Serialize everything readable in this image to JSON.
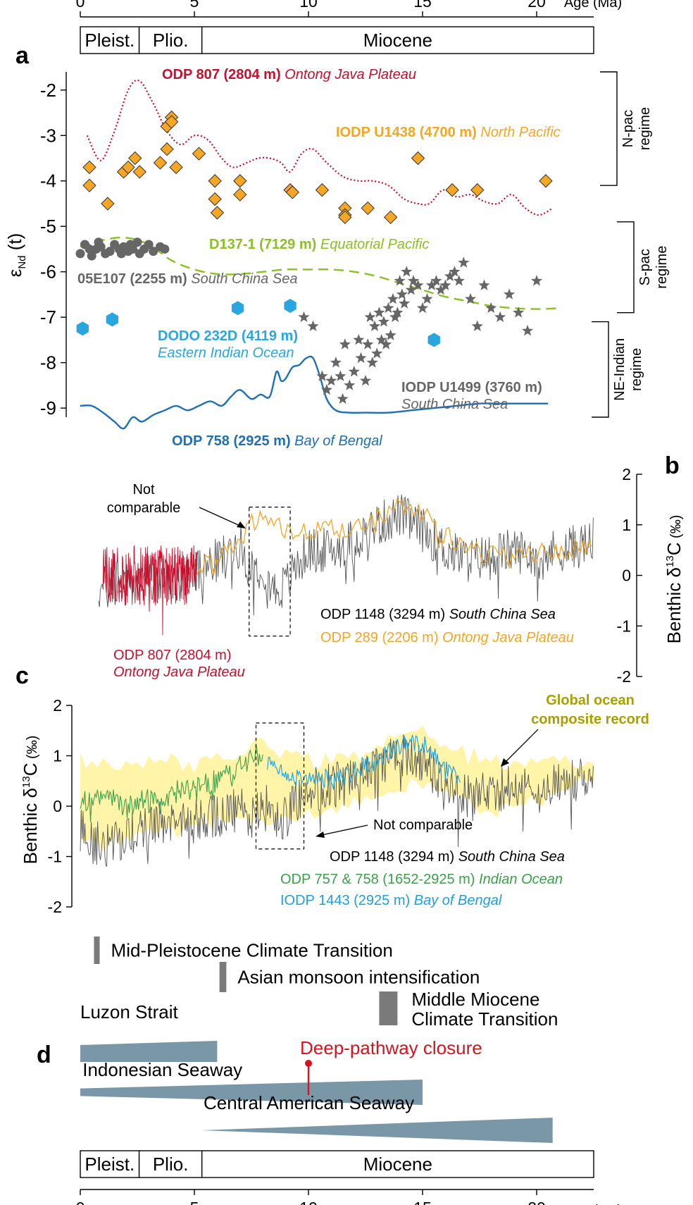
{
  "chart_data": [
    {
      "id": "timescale",
      "type": "table",
      "x_axis_label": "Age (Ma)",
      "ticks": [
        0,
        5,
        10,
        15,
        20
      ],
      "xlim": [
        0,
        22.5
      ],
      "epochs": [
        {
          "name": "Pleist.",
          "start": 0,
          "end": 2.58
        },
        {
          "name": "Plio.",
          "start": 2.58,
          "end": 5.33
        },
        {
          "name": "Miocene",
          "start": 5.33,
          "end": 22.5
        }
      ]
    },
    {
      "id": "panel_a",
      "panel_label": "a",
      "type": "scatter",
      "ylabel_main": "ε",
      "ylabel_sub": "Nd",
      "ylabel_tail": " (t)",
      "ylim": [
        -9.2,
        -1.6
      ],
      "yticks": [
        -9,
        -8,
        -7,
        -6,
        -5,
        -4,
        -3,
        -2
      ],
      "regimes": [
        {
          "line1": "N-pac",
          "line2": "regime",
          "from": -1.6,
          "to": -4.1
        },
        {
          "line1": "S-pac",
          "line2": "regime",
          "from": -4.9,
          "to": -6.9
        },
        {
          "line1": "NE-Indian",
          "line2": "regime",
          "from": -7.1,
          "to": -9.2
        }
      ],
      "series": [
        {
          "key": "odp807",
          "site": "ODP 807 (2804 m)",
          "region": "Ontong Java Plateau",
          "color": "#c8102e",
          "style": "dotted",
          "x": [
            0.3,
            0.9,
            1.5,
            2.1,
            2.6,
            3.2,
            3.8,
            4.4,
            5.0,
            5.6,
            6.2,
            6.7,
            7.3,
            7.8,
            8.3,
            8.8,
            9.2,
            9.7,
            10.2,
            10.8,
            11.5,
            12.2,
            12.8,
            13.5,
            14.2,
            14.8,
            15.3,
            15.9,
            16.5,
            17.1,
            17.7,
            18.3,
            18.9,
            19.5,
            20.1,
            20.7
          ],
          "y": [
            -3.0,
            -3.55,
            -2.9,
            -2.0,
            -1.8,
            -2.3,
            -2.9,
            -3.2,
            -3.0,
            -3.1,
            -3.5,
            -3.7,
            -3.6,
            -3.5,
            -3.5,
            -3.6,
            -3.8,
            -3.4,
            -3.3,
            -3.6,
            -3.9,
            -4.0,
            -4.0,
            -4.1,
            -4.4,
            -4.5,
            -4.5,
            -4.2,
            -4.35,
            -4.3,
            -4.45,
            -4.5,
            -4.3,
            -4.6,
            -4.75,
            -4.6
          ]
        },
        {
          "key": "u1438",
          "site": "IODP U1438 (4700 m)",
          "region": "North Pacific",
          "color": "#f5a623",
          "style": "diamond",
          "x": [
            0.4,
            0.4,
            1.2,
            1.9,
            2.1,
            2.4,
            2.6,
            3.5,
            3.8,
            3.8,
            4.0,
            4.0,
            4.2,
            5.2,
            5.9,
            5.9,
            6.0,
            7.0,
            7.0,
            9.2,
            9.3,
            10.6,
            11.6,
            11.6,
            11.6,
            12.6,
            13.6,
            14.8,
            16.3,
            17.4,
            20.4
          ],
          "y": [
            -3.7,
            -4.1,
            -4.5,
            -3.8,
            -3.7,
            -3.5,
            -3.8,
            -3.6,
            -3.3,
            -2.8,
            -2.6,
            -2.7,
            -3.7,
            -3.4,
            -4.0,
            -4.4,
            -4.7,
            -4.0,
            -4.3,
            -4.2,
            -4.25,
            -4.2,
            -4.6,
            -4.75,
            -4.8,
            -4.6,
            -4.8,
            -3.5,
            -4.2,
            -4.2,
            -4.0
          ]
        },
        {
          "key": "d137",
          "site": "D137-1 (7129 m)",
          "region": "Equatorial Pacific",
          "color": "#8cbf26",
          "style": "dashed",
          "x": [
            0.0,
            1.0,
            2.0,
            3.0,
            4.0,
            5.0,
            6.0,
            7.0,
            8.0,
            9.0,
            10.0,
            11.0,
            12.0,
            13.0,
            14.0,
            15.0,
            16.0,
            17.0,
            18.0,
            19.0,
            20.0,
            21.0
          ],
          "y": [
            -5.45,
            -5.3,
            -5.25,
            -5.4,
            -5.75,
            -5.95,
            -6.05,
            -6.05,
            -6.0,
            -5.95,
            -5.95,
            -5.95,
            -6.0,
            -6.1,
            -6.25,
            -6.4,
            -6.55,
            -6.65,
            -6.75,
            -6.8,
            -6.82,
            -6.8
          ]
        },
        {
          "key": "05e107",
          "site": "05E107 (2255 m)",
          "region": "South China Sea",
          "color": "#666666",
          "style": "circle",
          "x": [
            0.0,
            0.2,
            0.4,
            0.5,
            0.7,
            0.8,
            0.9,
            1.1,
            1.3,
            1.5,
            1.7,
            1.8,
            1.9,
            2.1,
            2.2,
            2.3,
            2.5,
            2.6,
            2.8,
            3.0,
            3.2,
            3.5,
            3.7
          ],
          "y": [
            -5.6,
            -5.4,
            -5.5,
            -5.65,
            -5.5,
            -5.35,
            -5.45,
            -5.6,
            -5.55,
            -5.4,
            -5.5,
            -5.6,
            -5.45,
            -5.55,
            -5.4,
            -5.5,
            -5.35,
            -5.6,
            -5.5,
            -5.4,
            -5.55,
            -5.45,
            -5.5
          ]
        },
        {
          "key": "dodo232d",
          "site": "DODO 232D (4119 m)",
          "region": "Eastern Indian Ocean",
          "color": "#29a6e0",
          "style": "hexagon",
          "x": [
            0.1,
            1.4,
            6.9,
            9.2,
            15.5
          ],
          "y": [
            -7.25,
            -7.05,
            -6.8,
            -6.75,
            -7.5
          ]
        },
        {
          "key": "u1499",
          "site": "IODP U1499 (3760 m)",
          "region": "South China Sea",
          "color": "#666666",
          "style": "star",
          "x": [
            9.8,
            10.2,
            10.6,
            10.8,
            11.0,
            11.2,
            11.4,
            11.5,
            11.6,
            11.8,
            12.0,
            12.2,
            12.3,
            12.5,
            12.6,
            12.7,
            12.8,
            12.9,
            13.0,
            13.1,
            13.2,
            13.3,
            13.4,
            13.5,
            13.6,
            13.7,
            13.8,
            13.9,
            14.0,
            14.1,
            14.2,
            14.3,
            14.5,
            14.6,
            14.8,
            15.0,
            15.2,
            15.4,
            15.6,
            15.8,
            16.0,
            16.2,
            16.4,
            16.6,
            16.8,
            17.1,
            17.4,
            17.7,
            18.0,
            18.4,
            18.8,
            19.2,
            19.6,
            20.0
          ],
          "y": [
            -7.0,
            -7.2,
            -8.3,
            -8.6,
            -8.4,
            -8.0,
            -8.3,
            -8.8,
            -7.6,
            -8.5,
            -8.2,
            -7.5,
            -7.9,
            -8.4,
            -7.6,
            -7.0,
            -8.0,
            -7.2,
            -7.8,
            -6.9,
            -7.5,
            -7.1,
            -7.6,
            -6.8,
            -7.4,
            -6.6,
            -7.0,
            -6.9,
            -6.2,
            -6.5,
            -6.7,
            -6.0,
            -6.4,
            -6.2,
            -6.3,
            -6.8,
            -6.6,
            -6.3,
            -6.2,
            -6.4,
            -6.3,
            -6.1,
            -6.0,
            -6.2,
            -5.8,
            -6.6,
            -7.2,
            -6.3,
            -6.8,
            -7.0,
            -6.5,
            -6.9,
            -7.3,
            -6.2
          ]
        },
        {
          "key": "odp758",
          "site": "ODP 758 (2925 m)",
          "region": "Bay of Bengal",
          "color": "#1f6fb5",
          "style": "solid",
          "x": [
            0.0,
            0.5,
            1.0,
            1.5,
            1.9,
            2.3,
            2.7,
            3.2,
            3.7,
            4.2,
            4.7,
            5.2,
            5.7,
            6.2,
            6.6,
            7.0,
            7.5,
            7.9,
            8.3,
            8.6,
            8.8,
            9.0,
            9.3,
            9.6,
            9.9,
            10.2,
            10.5,
            10.8,
            11.2,
            11.8,
            12.5,
            13.5,
            14.5,
            15.5,
            16.5,
            17.5,
            18.5,
            19.5,
            20.5
          ],
          "y": [
            -8.95,
            -8.95,
            -9.1,
            -9.3,
            -9.45,
            -9.2,
            -9.3,
            -9.15,
            -9.05,
            -8.95,
            -9.05,
            -8.95,
            -8.85,
            -8.95,
            -8.75,
            -8.6,
            -8.8,
            -8.7,
            -8.75,
            -8.2,
            -8.4,
            -8.35,
            -8.1,
            -8.05,
            -7.9,
            -7.9,
            -8.3,
            -8.8,
            -9.05,
            -9.1,
            -9.1,
            -9.1,
            -9.05,
            -9.0,
            -8.95,
            -8.9,
            -8.9,
            -8.9,
            -8.9
          ]
        }
      ]
    },
    {
      "id": "panel_b",
      "panel_label": "b",
      "type": "line",
      "ylabel_main": "Benthic δ",
      "ylabel_sup": "13",
      "ylabel_tail": "C",
      "ylabel_unit": "(‰)",
      "ylim": [
        -2,
        2
      ],
      "yticks": [
        -2,
        -1,
        0,
        1,
        2
      ],
      "annotation": "Not comparable",
      "annotation_lines": [
        "Not",
        "comparable"
      ],
      "box": {
        "x0": 7.4,
        "x1": 9.2,
        "y0": -1.2,
        "y1": 1.35
      },
      "series": [
        {
          "key": "odp807b",
          "site": "ODP 807 (2804 m)",
          "region": "Ontong Java Plateau",
          "color": "#c8102e",
          "xrange": [
            1.0,
            5.1
          ],
          "ymean": [
            0.0,
            0.0
          ],
          "amp": 0.6
        },
        {
          "key": "odp1148b",
          "site": "ODP 1148 (3294 m)",
          "region": "South China Sea",
          "color": "#555555",
          "xrange": [
            0.8,
            22.5
          ],
          "knots_x": [
            0.8,
            2,
            3,
            4,
            5,
            6,
            7,
            7.5,
            8,
            8.5,
            9,
            9.5,
            10,
            11,
            12,
            13,
            14,
            15,
            16,
            17,
            18,
            19,
            20,
            21,
            22,
            22.5
          ],
          "knots_y": [
            -0.3,
            -0.2,
            -0.1,
            -0.1,
            0.0,
            0.3,
            0.6,
            0.1,
            0.2,
            -0.3,
            -0.2,
            0.2,
            0.5,
            0.5,
            0.7,
            1.0,
            1.2,
            0.9,
            0.5,
            0.3,
            0.4,
            0.5,
            0.4,
            0.5,
            0.6,
            0.7
          ],
          "amp": 0.45
        },
        {
          "key": "odp289b",
          "site": "ODP 289 (2206 m)",
          "region": "Ontong Java Plateau",
          "color": "#f5a623",
          "xrange": [
            5.0,
            22.5
          ],
          "knots_x": [
            5,
            6,
            7,
            7.5,
            8,
            9,
            10,
            11,
            12,
            13,
            14,
            15,
            16,
            17,
            18,
            19,
            20,
            21,
            22,
            22.5
          ],
          "knots_y": [
            0.1,
            0.3,
            0.7,
            1.05,
            1.1,
            0.9,
            0.85,
            0.9,
            0.95,
            1.2,
            1.45,
            1.3,
            0.8,
            0.5,
            0.4,
            0.35,
            0.45,
            0.5,
            0.55,
            0.6
          ],
          "amp": 0.2
        }
      ]
    },
    {
      "id": "panel_c",
      "panel_label": "c",
      "type": "line",
      "ylabel_main": "Benthic δ",
      "ylabel_sup": "13",
      "ylabel_tail": "C",
      "ylabel_unit": "(‰)",
      "ylim": [
        -2,
        2
      ],
      "yticks": [
        -2,
        -1,
        0,
        1,
        2
      ],
      "annotation": "Not comparable",
      "composite_label_lines": [
        "Global ocean",
        "composite record"
      ],
      "box": {
        "x0": 7.7,
        "x1": 9.8,
        "y0": -0.85,
        "y1": 1.65
      },
      "envelope": {
        "color": "#fff4a8",
        "x": [
          0,
          1,
          2,
          3,
          4,
          5,
          6,
          7,
          8,
          9,
          10,
          11,
          12,
          13,
          14,
          15,
          16,
          17,
          18,
          19,
          20,
          21,
          22,
          22.5
        ],
        "upper": [
          0.9,
          0.9,
          0.8,
          0.9,
          0.9,
          0.8,
          1.0,
          1.1,
          1.3,
          1.0,
          0.9,
          0.9,
          1.0,
          1.2,
          1.5,
          1.6,
          1.2,
          1.0,
          0.9,
          0.8,
          0.8,
          0.9,
          0.9,
          0.9
        ],
        "lower": [
          -0.6,
          -0.8,
          -0.6,
          -0.6,
          -0.5,
          -0.4,
          -0.3,
          -0.2,
          -0.3,
          -0.2,
          -0.1,
          -0.1,
          0.1,
          0.2,
          0.4,
          0.4,
          0.2,
          0.0,
          -0.1,
          0.0,
          0.1,
          0.2,
          0.4,
          0.4
        ]
      },
      "series": [
        {
          "key": "odp1148c",
          "site": "ODP 1148 (3294 m)",
          "region": "South China Sea",
          "color": "#555555",
          "xrange": [
            0.0,
            22.5
          ],
          "knots_x": [
            0,
            1,
            2,
            3,
            4,
            5,
            6,
            7,
            7.5,
            8,
            8.5,
            9,
            9.5,
            10,
            11,
            12,
            13,
            14,
            15,
            16,
            17,
            18,
            19,
            20,
            21,
            22,
            22.5
          ],
          "knots_y": [
            -0.5,
            -0.8,
            -0.6,
            -0.4,
            -0.3,
            -0.3,
            -0.2,
            0.0,
            -0.2,
            0.1,
            -0.3,
            -0.2,
            0.1,
            0.3,
            0.4,
            0.5,
            0.8,
            1.0,
            0.9,
            0.3,
            0.2,
            0.3,
            0.4,
            0.3,
            0.4,
            0.6,
            0.7
          ],
          "amp": 0.45
        },
        {
          "key": "odp757c",
          "site": "ODP 757 & 758 (1652-2925 m)",
          "region": "Indian Ocean",
          "color": "#3aa14a",
          "xrange": [
            0.0,
            8.0
          ],
          "knots_x": [
            0,
            1,
            2,
            3,
            4,
            5,
            6,
            7,
            7.6,
            8
          ],
          "knots_y": [
            0.1,
            0.2,
            0.0,
            0.1,
            0.3,
            0.3,
            0.5,
            0.8,
            1.0,
            0.9
          ],
          "amp": 0.25
        },
        {
          "key": "iodp1443c",
          "site": "IODP 1443 (2925 m)",
          "region": "Bay of Bengal",
          "color": "#1ea0e0",
          "xrange": [
            8.2,
            16.7
          ],
          "knots_x": [
            8.2,
            9,
            10,
            11,
            12,
            13,
            14,
            14.5,
            15,
            15.5,
            16,
            16.7
          ],
          "knots_y": [
            0.8,
            0.6,
            0.5,
            0.55,
            0.7,
            0.9,
            1.2,
            1.3,
            1.25,
            1.0,
            0.7,
            0.5
          ],
          "amp": 0.2
        }
      ]
    },
    {
      "id": "panel_d",
      "panel_label": "d",
      "type": "table",
      "events": [
        {
          "label": "Mid-Pleistocene Climate Transition",
          "start": 0.6,
          "end": 0.85,
          "y_slot": 0
        },
        {
          "label": "Asian monsoon intensification",
          "start": 6.1,
          "end": 6.4,
          "y_slot": 1
        },
        {
          "label_lines": [
            "Middle Miocene",
            "Climate Transition"
          ],
          "start": 13.1,
          "end": 13.9,
          "y_slot": 2
        }
      ],
      "seaways": [
        {
          "label": "Luzon Strait",
          "start": 0.0,
          "end": 6.0,
          "thick_start": 0.8,
          "thick_end": 1.0,
          "color": "#7a97a8"
        },
        {
          "label": "Indonesian Seaway",
          "start": 0.0,
          "end": 15.0,
          "thick_start": 0.3,
          "thick_end": 1.0,
          "color": "#7a97a8"
        },
        {
          "label": "Central American Seaway",
          "start": 5.3,
          "end": 20.7,
          "thick_start": 0.0,
          "thick_end": 1.0,
          "color": "#7a97a8"
        }
      ],
      "marker": {
        "label": "Deep-pathway closure",
        "age": 10.0,
        "color": "#d7141e"
      }
    }
  ]
}
